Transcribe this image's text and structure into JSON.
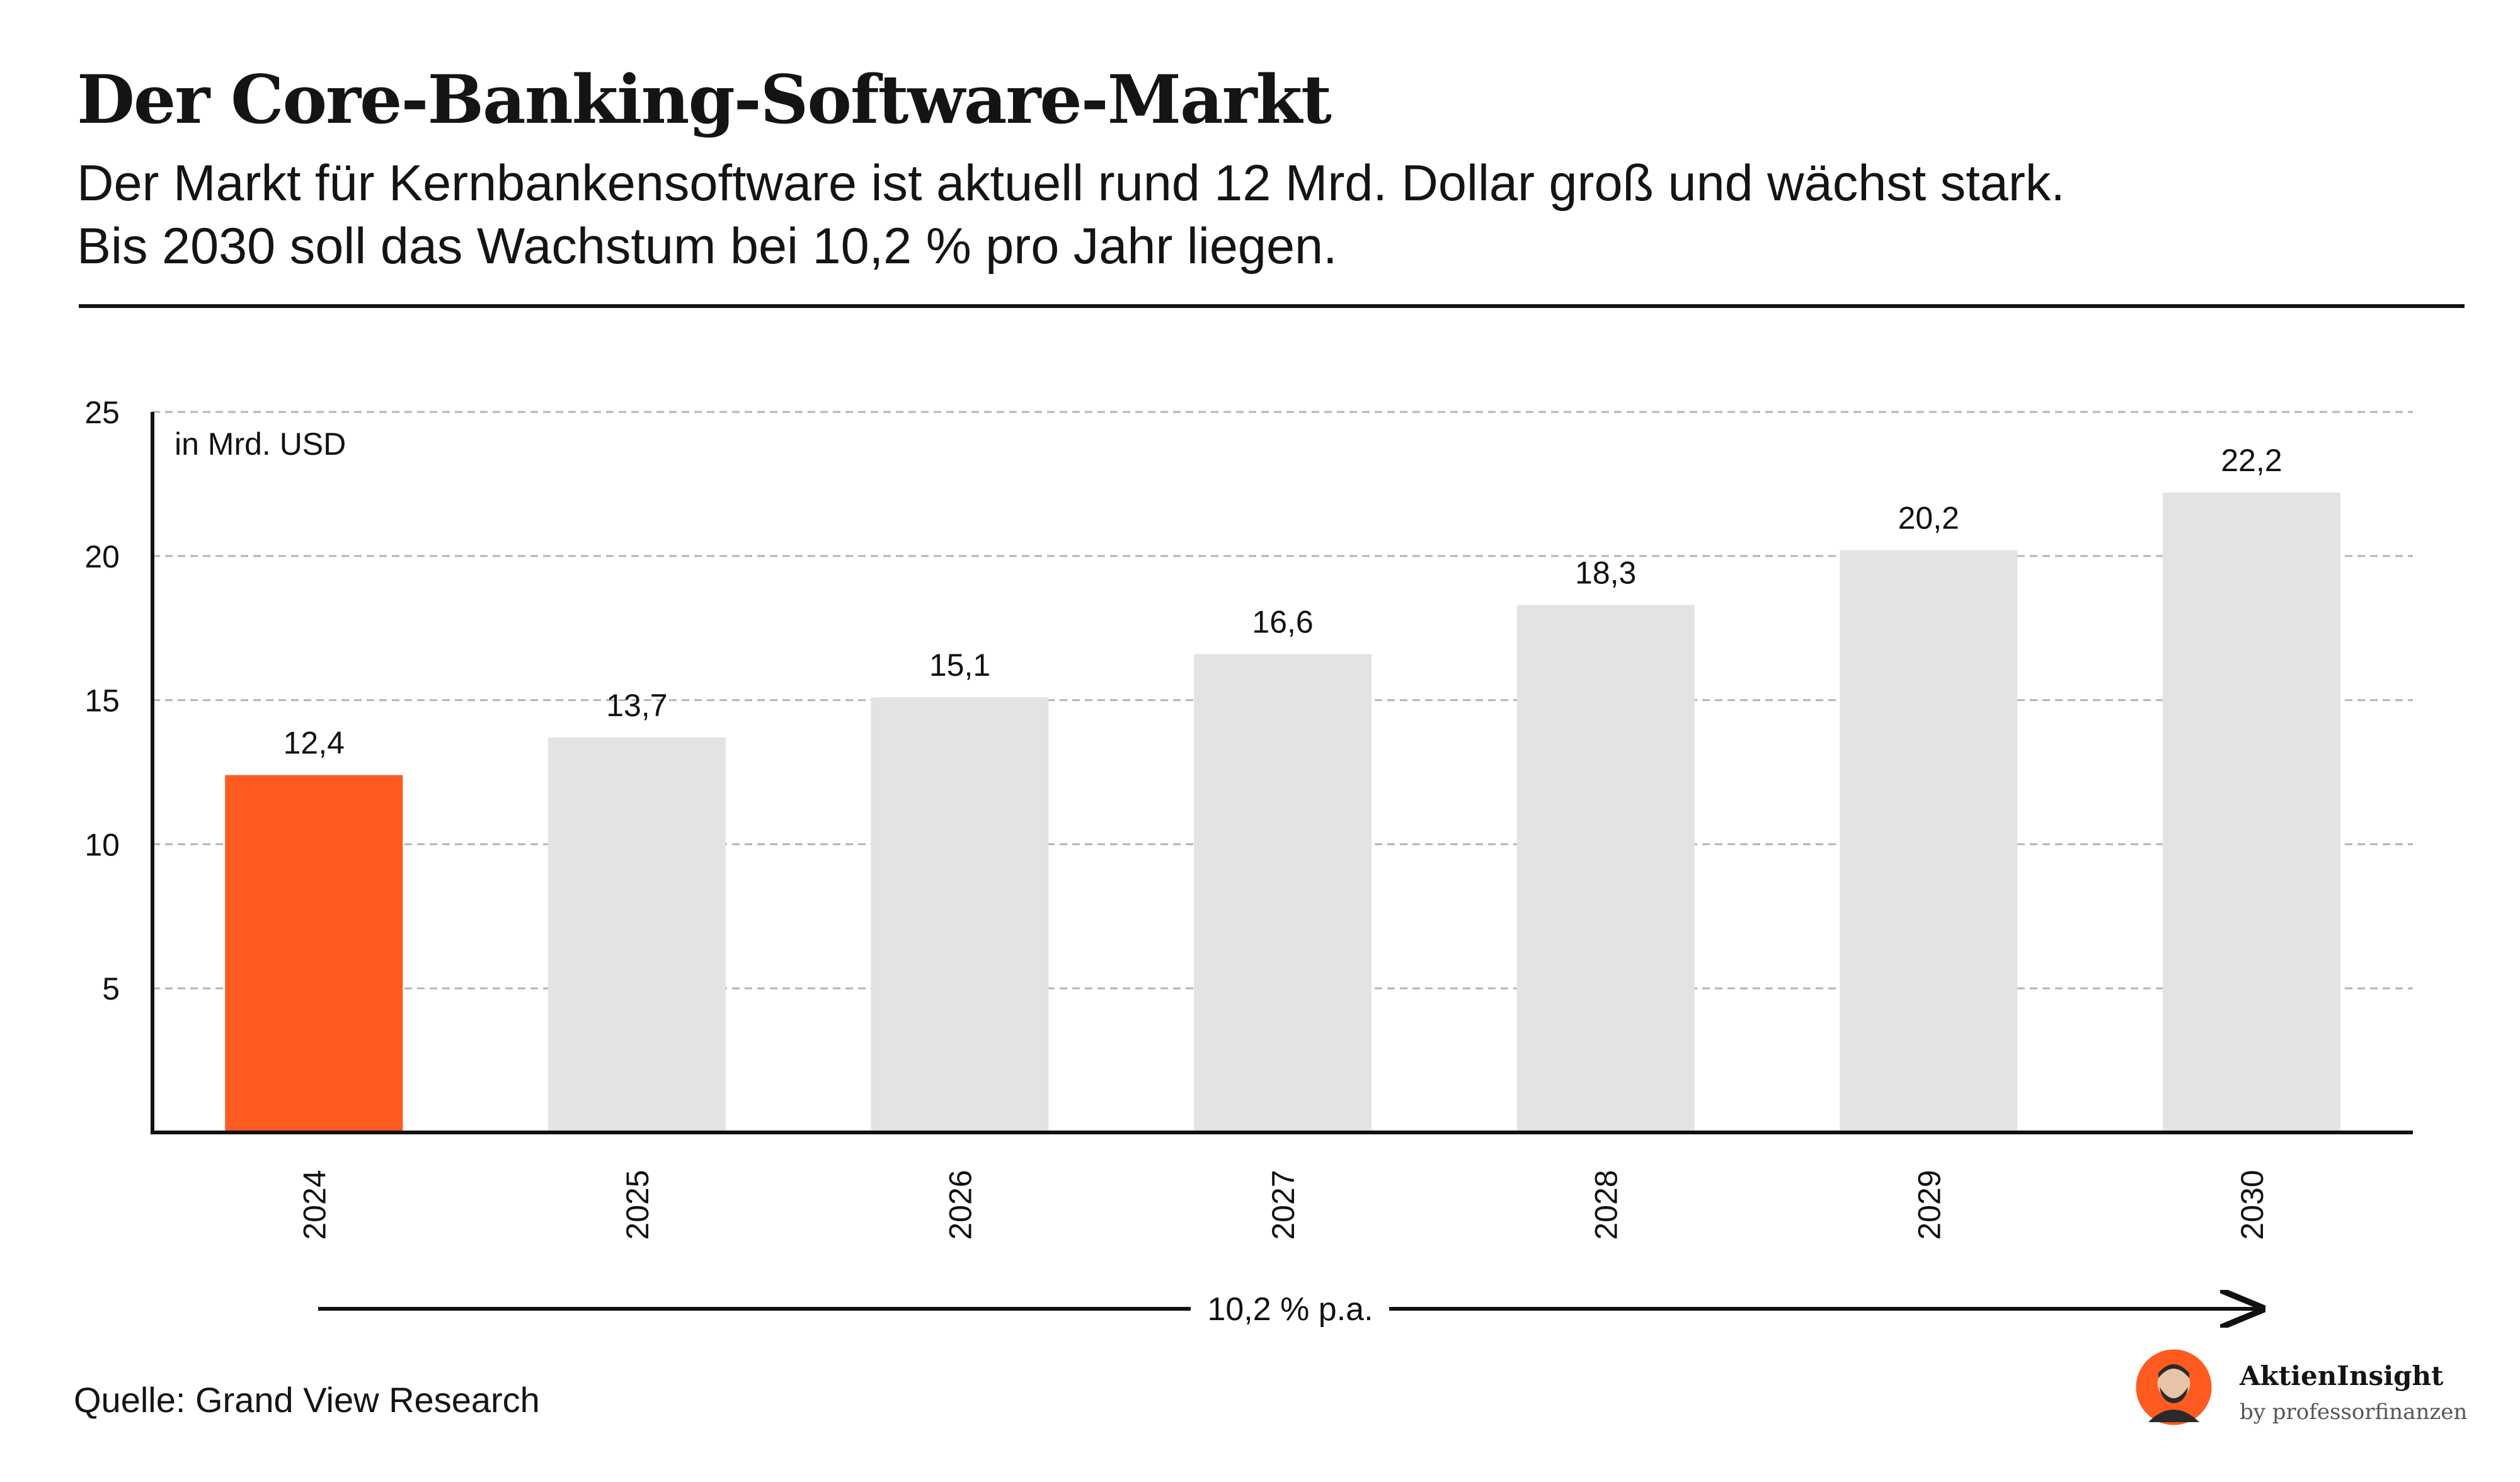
{
  "header": {
    "title": "Der Core-Banking-Software-Markt",
    "subtitle_line1": "Der Markt für Kernbankensoftware ist aktuell rund 12 Mrd. Dollar groß und wächst stark.",
    "subtitle_line2": "Bis 2030 soll das Wachstum bei 10,2 % pro Jahr liegen."
  },
  "chart_data": {
    "type": "bar",
    "unit_label": "in Mrd. USD",
    "categories": [
      "2024",
      "2025",
      "2026",
      "2027",
      "2028",
      "2029",
      "2030"
    ],
    "values": [
      12.4,
      13.7,
      15.1,
      16.6,
      18.3,
      20.2,
      22.2
    ],
    "value_labels": [
      "12,4",
      "13,7",
      "15,1",
      "16,6",
      "18,3",
      "20,2",
      "22,2"
    ],
    "ylim": [
      0,
      25
    ],
    "yticks": [
      5,
      10,
      15,
      20,
      25
    ],
    "grid": true,
    "highlight_index": 0,
    "growth_annotation": "10,2 % p.a."
  },
  "colors": {
    "highlight_bar": "#FF5A1F",
    "default_bar": "#E3E3E3",
    "axis": "#111111",
    "grid": "#B5B5B5"
  },
  "footer": {
    "source": "Quelle: Grand View Research",
    "brand_name": "AktienInsight",
    "brand_by": "by professorfinanzen",
    "brand_icon": "avatar-icon"
  }
}
